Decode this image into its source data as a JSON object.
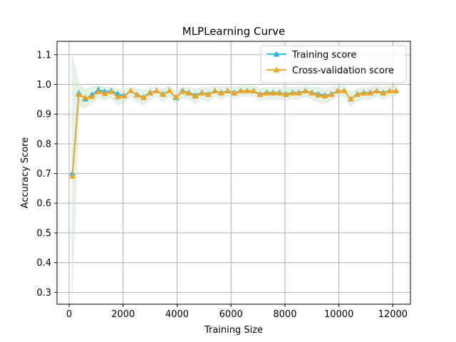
{
  "chart_data": {
    "type": "line",
    "title": "MLPLearning Curve",
    "xlabel": "Training Size",
    "ylabel": "Accuracy Score",
    "xlim": [
      -450,
      12650
    ],
    "ylim": [
      0.26,
      1.145
    ],
    "xticks": [
      0,
      2000,
      4000,
      6000,
      8000,
      10000,
      12000
    ],
    "yticks": [
      0.3,
      0.4,
      0.5,
      0.6,
      0.7,
      0.8,
      0.9,
      1.0,
      1.1
    ],
    "grid": true,
    "legend_position": "top-right",
    "x": [
      120,
      360,
      600,
      840,
      1080,
      1320,
      1560,
      1800,
      2040,
      2280,
      2520,
      2760,
      3000,
      3240,
      3480,
      3720,
      3960,
      4200,
      4440,
      4680,
      4920,
      5160,
      5400,
      5640,
      5880,
      6120,
      6360,
      6600,
      6840,
      7080,
      7320,
      7560,
      7800,
      8040,
      8280,
      8520,
      8760,
      9000,
      9240,
      9480,
      9720,
      9960,
      10200,
      10440,
      10680,
      10920,
      11160,
      11400,
      11640,
      11880,
      12120
    ],
    "series": [
      {
        "name": "Training score",
        "color": "#1fb5e6",
        "marker": "triangle",
        "values": [
          0.7,
          0.97,
          0.95,
          0.965,
          0.982,
          0.975,
          0.978,
          0.968,
          0.962,
          0.978,
          0.965,
          0.957,
          0.972,
          0.978,
          0.967,
          0.978,
          0.955,
          0.978,
          0.972,
          0.963,
          0.972,
          0.967,
          0.978,
          0.972,
          0.978,
          0.972,
          0.978,
          0.978,
          0.978,
          0.967,
          0.972,
          0.972,
          0.972,
          0.967,
          0.972,
          0.972,
          0.978,
          0.972,
          0.967,
          0.963,
          0.967,
          0.978,
          0.978,
          0.95,
          0.967,
          0.972,
          0.972,
          0.978,
          0.972,
          0.978,
          0.978
        ]
      },
      {
        "name": "Cross-validation score",
        "color": "#f5a31a",
        "marker": "triangle",
        "values": [
          0.69,
          0.965,
          0.955,
          0.958,
          0.975,
          0.968,
          0.975,
          0.957,
          0.96,
          0.978,
          0.963,
          0.955,
          0.97,
          0.978,
          0.965,
          0.978,
          0.957,
          0.975,
          0.97,
          0.96,
          0.97,
          0.965,
          0.977,
          0.97,
          0.977,
          0.97,
          0.977,
          0.977,
          0.977,
          0.965,
          0.97,
          0.97,
          0.97,
          0.965,
          0.97,
          0.97,
          0.977,
          0.97,
          0.963,
          0.96,
          0.965,
          0.977,
          0.977,
          0.95,
          0.965,
          0.97,
          0.97,
          0.977,
          0.97,
          0.977,
          0.977
        ]
      }
    ],
    "band_color": "#cfe5cf",
    "band_upper": [
      1.1,
      1.0,
      0.985,
      0.99,
      0.995,
      0.99,
      0.99,
      0.985,
      0.985,
      0.99,
      0.985,
      0.98,
      0.99,
      0.99,
      0.985,
      0.995,
      0.975,
      0.99,
      0.99,
      0.985,
      0.99,
      0.99,
      0.995,
      0.99,
      0.995,
      0.99,
      0.995,
      0.995,
      0.995,
      0.985,
      0.99,
      0.99,
      0.99,
      0.99,
      0.99,
      0.99,
      0.995,
      0.99,
      0.99,
      0.985,
      0.99,
      0.995,
      0.995,
      0.975,
      0.985,
      0.99,
      0.99,
      0.995,
      0.99,
      0.995,
      0.995
    ],
    "band_lower": [
      0.3,
      0.93,
      0.92,
      0.935,
      0.955,
      0.945,
      0.955,
      0.93,
      0.94,
      0.96,
      0.94,
      0.93,
      0.95,
      0.96,
      0.94,
      0.96,
      0.935,
      0.955,
      0.95,
      0.935,
      0.95,
      0.94,
      0.96,
      0.95,
      0.96,
      0.95,
      0.96,
      0.96,
      0.96,
      0.945,
      0.95,
      0.95,
      0.95,
      0.945,
      0.95,
      0.95,
      0.96,
      0.95,
      0.94,
      0.935,
      0.945,
      0.96,
      0.96,
      0.925,
      0.945,
      0.95,
      0.95,
      0.96,
      0.95,
      0.96,
      0.96
    ]
  }
}
